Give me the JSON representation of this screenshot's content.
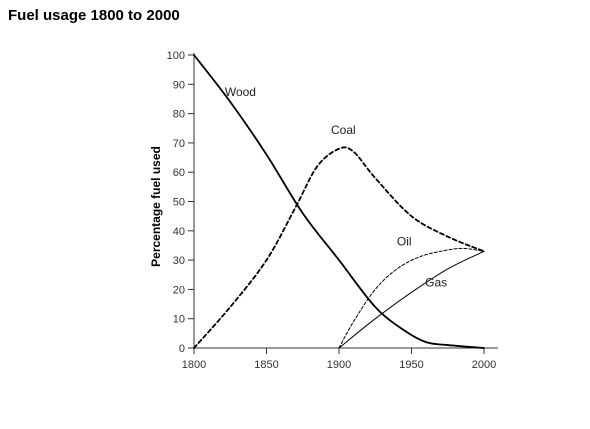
{
  "chart_data": {
    "type": "line",
    "title": "Fuel usage 1800 to 2000",
    "xlabel": "",
    "ylabel": "Percentage fuel used",
    "xlim": [
      1800,
      2000
    ],
    "ylim": [
      0,
      100
    ],
    "xticks": [
      1800,
      1850,
      1900,
      1950,
      2000
    ],
    "yticks": [
      0,
      10,
      20,
      30,
      40,
      50,
      60,
      70,
      80,
      90,
      100
    ],
    "grid": false,
    "legend": "none (series labelled directly on the lines)",
    "series": [
      {
        "name": "Wood",
        "style": "solid-thick",
        "x": [
          1800,
          1825,
          1850,
          1875,
          1900,
          1925,
          1945,
          1960,
          1975,
          2000
        ],
        "y": [
          100,
          84,
          66,
          46,
          30,
          14,
          6,
          2,
          1,
          0
        ]
      },
      {
        "name": "Coal",
        "style": "dashed-thick",
        "x": [
          1800,
          1825,
          1850,
          1870,
          1885,
          1900,
          1910,
          1925,
          1950,
          1975,
          2000
        ],
        "y": [
          0,
          14,
          30,
          48,
          62,
          68,
          67,
          58,
          45,
          38,
          33
        ]
      },
      {
        "name": "Oil",
        "style": "dashed-thin",
        "x": [
          1900,
          1910,
          1925,
          1940,
          1955,
          1970,
          1985,
          2000
        ],
        "y": [
          0,
          9,
          20,
          27,
          31,
          33,
          34,
          33
        ]
      },
      {
        "name": "Gas",
        "style": "solid-thin",
        "x": [
          1900,
          1925,
          1950,
          1975,
          2000
        ],
        "y": [
          0,
          10,
          19,
          27,
          33
        ]
      }
    ]
  },
  "colors": {
    "line": "#000000",
    "axis": "#333333",
    "background": "#ffffff"
  }
}
